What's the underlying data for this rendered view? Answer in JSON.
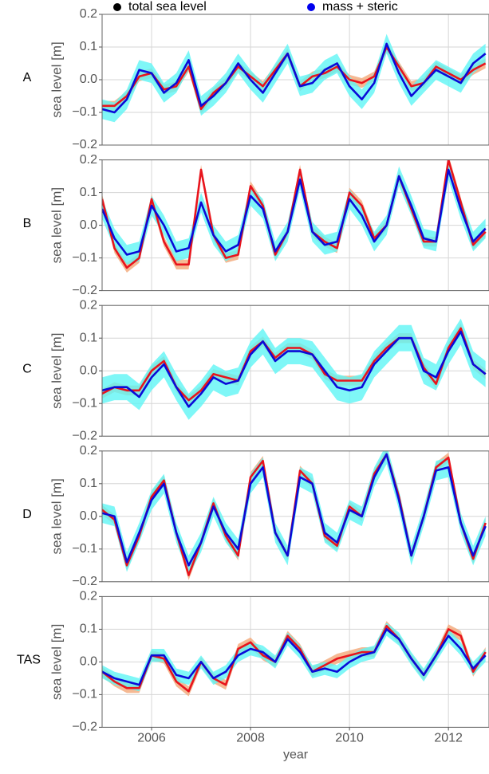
{
  "chart_data": [
    {
      "type": "line",
      "panel_label": "A",
      "ylabel": "sea level [m]",
      "x": [
        2005,
        2005.25,
        2005.5,
        2005.75,
        2006,
        2006.25,
        2006.5,
        2006.75,
        2007,
        2007.25,
        2007.5,
        2007.75,
        2008,
        2008.25,
        2008.5,
        2008.75,
        2009,
        2009.25,
        2009.5,
        2009.75,
        2010,
        2010.25,
        2010.5,
        2010.75,
        2011,
        2011.25,
        2011.5,
        2011.75,
        2012,
        2012.25,
        2012.5,
        2012.75
      ],
      "xlim": [
        2005,
        2012.82
      ],
      "xticks": [
        2006,
        2008,
        2010,
        2012
      ],
      "ylim": [
        -0.2,
        0.2
      ],
      "yticks": [
        {
          "value": -0.2,
          "label": "−0.2"
        },
        {
          "value": -0.1,
          "label": "−0.1"
        },
        {
          "value": 0,
          "label": "0.0"
        },
        0.1,
        0.2
      ],
      "grid": true,
      "series": [
        {
          "name": "total sea level",
          "marker_color": "#000000",
          "color": "#e8141c",
          "band_color": "#f2a878",
          "error": 0.015,
          "values": [
            -0.08,
            -0.08,
            -0.05,
            0.01,
            0.02,
            -0.03,
            -0.02,
            0.04,
            -0.09,
            -0.04,
            -0.01,
            0.04,
            0.01,
            -0.02,
            0.03,
            0.08,
            -0.02,
            0.01,
            0.02,
            0.04,
            0.0,
            -0.01,
            0.01,
            0.1,
            0.04,
            -0.02,
            -0.01,
            0.04,
            0.02,
            0.0,
            0.03,
            0.05
          ]
        },
        {
          "name": "mass + steric",
          "marker_color": "#0000ee",
          "color": "#0a0ad8",
          "band_color": "#5ff5f5",
          "error": 0.03,
          "values": [
            -0.09,
            -0.1,
            -0.06,
            0.03,
            0.02,
            -0.04,
            -0.01,
            0.06,
            -0.08,
            -0.05,
            -0.01,
            0.05,
            0.0,
            -0.04,
            0.02,
            0.08,
            -0.02,
            -0.01,
            0.03,
            0.05,
            -0.02,
            -0.06,
            -0.01,
            0.11,
            0.02,
            -0.05,
            -0.01,
            0.03,
            0.01,
            -0.01,
            0.05,
            0.08
          ]
        }
      ]
    },
    {
      "type": "line",
      "panel_label": "B",
      "ylabel": "sea level [m]",
      "x": [
        2005,
        2005.25,
        2005.5,
        2005.75,
        2006,
        2006.25,
        2006.5,
        2006.75,
        2007,
        2007.25,
        2007.5,
        2007.75,
        2008,
        2008.25,
        2008.5,
        2008.75,
        2009,
        2009.25,
        2009.5,
        2009.75,
        2010,
        2010.25,
        2010.5,
        2010.75,
        2011,
        2011.25,
        2011.5,
        2011.75,
        2012,
        2012.25,
        2012.5,
        2012.75
      ],
      "xlim": [
        2005,
        2012.82
      ],
      "xticks": [
        2006,
        2008,
        2010,
        2012
      ],
      "ylim": [
        -0.2,
        0.2
      ],
      "yticks": [
        {
          "value": -0.2,
          "label": "−0.2"
        },
        {
          "value": -0.1,
          "label": "−0.1"
        },
        {
          "value": 0,
          "label": "0.0"
        },
        0.1,
        0.2
      ],
      "grid": true,
      "series": [
        {
          "color": "#e8141c",
          "band_color": "#f2a878",
          "error": 0.015,
          "values": [
            0.08,
            -0.07,
            -0.13,
            -0.1,
            0.08,
            -0.05,
            -0.12,
            -0.12,
            0.17,
            -0.03,
            -0.1,
            -0.09,
            0.12,
            0.06,
            -0.09,
            -0.02,
            0.17,
            -0.02,
            -0.05,
            -0.07,
            0.1,
            0.06,
            -0.04,
            0.0,
            0.15,
            0.05,
            -0.05,
            -0.05,
            0.2,
            0.07,
            -0.06,
            -0.02
          ]
        },
        {
          "color": "#0a0ad8",
          "band_color": "#5ff5f5",
          "error": 0.03,
          "values": [
            0.05,
            -0.04,
            -0.09,
            -0.08,
            0.06,
            0.0,
            -0.08,
            -0.07,
            0.07,
            -0.03,
            -0.08,
            -0.06,
            0.09,
            0.05,
            -0.08,
            -0.02,
            0.14,
            -0.02,
            -0.06,
            -0.05,
            0.08,
            0.03,
            -0.05,
            0.0,
            0.15,
            0.06,
            -0.04,
            -0.05,
            0.17,
            0.05,
            -0.05,
            -0.01
          ]
        }
      ]
    },
    {
      "type": "line",
      "panel_label": "C",
      "ylabel": "sea level [m]",
      "x": [
        2005,
        2005.25,
        2005.5,
        2005.75,
        2006,
        2006.25,
        2006.5,
        2006.75,
        2007,
        2007.25,
        2007.5,
        2007.75,
        2008,
        2008.25,
        2008.5,
        2008.75,
        2009,
        2009.25,
        2009.5,
        2009.75,
        2010,
        2010.25,
        2010.5,
        2010.75,
        2011,
        2011.25,
        2011.5,
        2011.75,
        2012,
        2012.25,
        2012.5,
        2012.75
      ],
      "xlim": [
        2005,
        2012.82
      ],
      "xticks": [
        2006,
        2008,
        2010,
        2012
      ],
      "ylim": [
        -0.2,
        0.2
      ],
      "yticks": [
        {
          "value": -0.2,
          "label": "−0.2"
        },
        {
          "value": -0.1,
          "label": "−0.1"
        },
        {
          "value": 0,
          "label": "0.0"
        },
        0.1,
        0.2
      ],
      "grid": true,
      "series": [
        {
          "color": "#e8141c",
          "band_color": "#f2a878",
          "error": 0.015,
          "values": [
            -0.07,
            -0.05,
            -0.06,
            -0.06,
            0.0,
            0.03,
            -0.05,
            -0.09,
            -0.06,
            -0.01,
            -0.02,
            -0.03,
            0.06,
            0.09,
            0.04,
            0.07,
            0.07,
            0.05,
            -0.01,
            -0.03,
            -0.03,
            -0.03,
            0.03,
            0.07,
            0.1,
            0.1,
            0.01,
            -0.04,
            0.07,
            0.13,
            0.02,
            -0.01
          ]
        },
        {
          "color": "#0a0ad8",
          "band_color": "#5ff5f5",
          "error": 0.04,
          "values": [
            -0.06,
            -0.05,
            -0.05,
            -0.08,
            -0.02,
            0.02,
            -0.05,
            -0.11,
            -0.07,
            -0.02,
            -0.04,
            -0.03,
            0.05,
            0.09,
            0.03,
            0.06,
            0.06,
            0.05,
            0.0,
            -0.05,
            -0.06,
            -0.05,
            0.02,
            0.06,
            0.1,
            0.1,
            0.0,
            -0.02,
            0.06,
            0.12,
            0.02,
            -0.01
          ]
        }
      ]
    },
    {
      "type": "line",
      "panel_label": "D",
      "ylabel": "sea level [m]",
      "x": [
        2005,
        2005.25,
        2005.5,
        2005.75,
        2006,
        2006.25,
        2006.5,
        2006.75,
        2007,
        2007.25,
        2007.5,
        2007.75,
        2008,
        2008.25,
        2008.5,
        2008.75,
        2009,
        2009.25,
        2009.5,
        2009.75,
        2010,
        2010.25,
        2010.5,
        2010.75,
        2011,
        2011.25,
        2011.5,
        2011.75,
        2012,
        2012.25,
        2012.5,
        2012.75
      ],
      "xlim": [
        2005,
        2012.82
      ],
      "xticks": [
        2006,
        2008,
        2010,
        2012
      ],
      "ylim": [
        -0.2,
        0.2
      ],
      "yticks": [
        {
          "value": -0.2,
          "label": "−0.2"
        },
        {
          "value": -0.1,
          "label": "−0.1"
        },
        {
          "value": 0,
          "label": "0.0"
        },
        0.1,
        0.2
      ],
      "grid": true,
      "series": [
        {
          "color": "#e8141c",
          "band_color": "#f2a878",
          "error": 0.015,
          "values": [
            0.02,
            -0.01,
            -0.15,
            -0.06,
            0.06,
            0.11,
            -0.05,
            -0.18,
            -0.08,
            0.04,
            -0.06,
            -0.12,
            0.12,
            0.17,
            -0.05,
            -0.12,
            0.14,
            0.1,
            -0.06,
            -0.09,
            0.03,
            0.0,
            0.13,
            0.19,
            0.06,
            -0.12,
            0.0,
            0.15,
            0.18,
            -0.02,
            -0.13,
            -0.02
          ]
        },
        {
          "color": "#0a0ad8",
          "band_color": "#5ff5f5",
          "error": 0.03,
          "values": [
            0.01,
            0.0,
            -0.14,
            -0.05,
            0.05,
            0.1,
            -0.05,
            -0.15,
            -0.08,
            0.03,
            -0.05,
            -0.1,
            0.1,
            0.15,
            -0.05,
            -0.12,
            0.12,
            0.1,
            -0.05,
            -0.08,
            0.02,
            0.0,
            0.12,
            0.19,
            0.05,
            -0.12,
            0.0,
            0.14,
            0.15,
            -0.02,
            -0.12,
            -0.03
          ]
        }
      ]
    },
    {
      "type": "line",
      "panel_label": "TAS",
      "ylabel": "sea level [m]",
      "xlabel": "year",
      "x": [
        2005,
        2005.25,
        2005.5,
        2005.75,
        2006,
        2006.25,
        2006.5,
        2006.75,
        2007,
        2007.25,
        2007.5,
        2007.75,
        2008,
        2008.25,
        2008.5,
        2008.75,
        2009,
        2009.25,
        2009.5,
        2009.75,
        2010,
        2010.25,
        2010.5,
        2010.75,
        2011,
        2011.25,
        2011.5,
        2011.75,
        2012,
        2012.25,
        2012.5,
        2012.75
      ],
      "xlim": [
        2005,
        2012.82
      ],
      "xticks": [
        2006,
        2008,
        2010,
        2012
      ],
      "ylim": [
        -0.2,
        0.2
      ],
      "yticks": [
        {
          "value": -0.2,
          "label": "−0.2"
        },
        {
          "value": -0.1,
          "label": "−0.1"
        },
        {
          "value": 0,
          "label": "0.0"
        },
        0.1,
        0.2
      ],
      "grid": true,
      "series": [
        {
          "color": "#e8141c",
          "band_color": "#f2a878",
          "error": 0.015,
          "values": [
            -0.03,
            -0.06,
            -0.08,
            -0.08,
            0.02,
            0.01,
            -0.06,
            -0.09,
            0.0,
            -0.05,
            -0.07,
            0.04,
            0.06,
            0.02,
            0.0,
            0.08,
            0.04,
            -0.03,
            -0.01,
            0.01,
            0.02,
            0.03,
            0.03,
            0.11,
            0.07,
            0.01,
            -0.04,
            0.02,
            0.1,
            0.08,
            -0.03,
            0.03
          ]
        },
        {
          "color": "#0a0ad8",
          "band_color": "#5ff5f5",
          "error": 0.02,
          "values": [
            -0.03,
            -0.05,
            -0.06,
            -0.07,
            0.02,
            0.02,
            -0.04,
            -0.05,
            0.0,
            -0.05,
            -0.03,
            0.02,
            0.04,
            0.03,
            0.0,
            0.07,
            0.03,
            -0.03,
            -0.02,
            -0.03,
            0.0,
            0.02,
            0.03,
            0.1,
            0.07,
            0.01,
            -0.04,
            0.02,
            0.08,
            0.04,
            -0.02,
            0.02
          ]
        }
      ]
    }
  ]
}
